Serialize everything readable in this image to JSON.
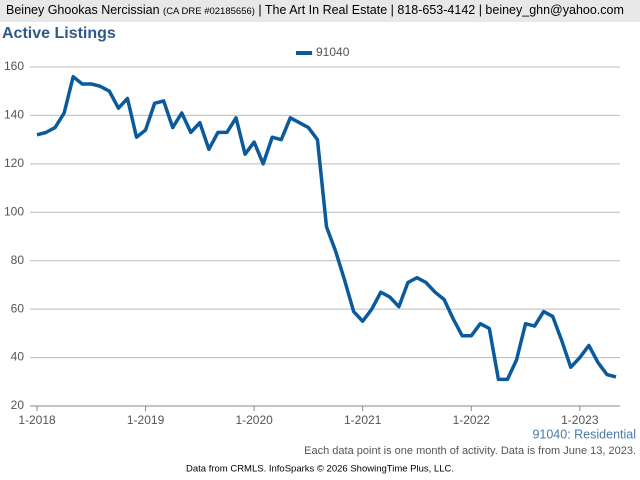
{
  "header": {
    "name": "Beiney Ghookas Nercissian",
    "license": "(CA DRE #02185656)",
    "rest": "| The Art In Real Estate | 818-653-4142 | beiney_ghn@yahoo.com"
  },
  "chart_data": {
    "type": "line",
    "title": "Active Listings",
    "categories": [
      "1-2018",
      null,
      null,
      null,
      null,
      null,
      null,
      null,
      null,
      null,
      null,
      null,
      "1-2019",
      null,
      null,
      null,
      null,
      null,
      null,
      null,
      null,
      null,
      null,
      null,
      "1-2020",
      null,
      null,
      null,
      null,
      null,
      null,
      null,
      null,
      null,
      null,
      null,
      "1-2021",
      null,
      null,
      null,
      null,
      null,
      null,
      null,
      null,
      null,
      null,
      null,
      "1-2022",
      null,
      null,
      null,
      null,
      null,
      null,
      null,
      null,
      null,
      null,
      null,
      "1-2023",
      null,
      null,
      null,
      null
    ],
    "series": [
      {
        "name": "91040",
        "color": "#0a5a9c",
        "values": [
          132,
          133,
          135,
          141,
          156,
          153,
          153,
          152,
          150,
          143,
          147,
          131,
          134,
          145,
          146,
          135,
          141,
          133,
          137,
          126,
          133,
          133,
          139,
          124,
          129,
          120,
          131,
          130,
          139,
          137,
          135,
          130,
          94,
          84,
          72,
          59,
          55,
          60,
          67,
          65,
          61,
          71,
          73,
          71,
          67,
          64,
          56,
          49,
          49,
          54,
          52,
          31,
          31,
          39,
          54,
          53,
          59,
          57,
          47,
          36,
          40,
          45,
          38,
          33,
          32
        ]
      }
    ],
    "ylim": [
      20,
      160
    ],
    "yticks": [
      20,
      40,
      60,
      80,
      100,
      120,
      140,
      160
    ],
    "grid": true,
    "legend": "top",
    "annotations": [
      "91040: Residential",
      "Each data point is one month of activity. Data is from June 13, 2023.",
      "Data from CRMLS. InfoSparks © 2026 ShowingTime Plus, LLC."
    ]
  }
}
